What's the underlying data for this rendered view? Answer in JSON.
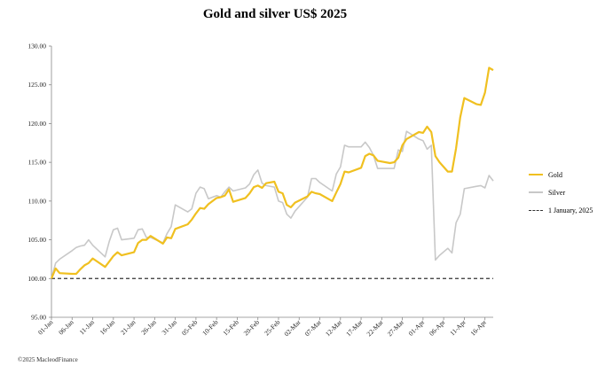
{
  "title": "Gold and silver  US$ 2025",
  "footer": "©2025 MacleodFinance",
  "colors": {
    "gold": "#f0c020",
    "silver": "#c8c8c8",
    "baseline": "#333333",
    "axis": "#888888"
  },
  "chart_data": {
    "type": "line",
    "title": "Gold and silver  US$ 2025",
    "ylim": [
      95,
      130
    ],
    "yticks": [
      "95.00",
      "100.00",
      "105.00",
      "110.00",
      "115.00",
      "120.00",
      "125.00",
      "130.00"
    ],
    "xtick_labels": [
      "01-Jan",
      "06-Jan",
      "11-Jan",
      "16-Jan",
      "21-Jan",
      "26-Jan",
      "31-Jan",
      "05-Feb",
      "10-Feb",
      "15-Feb",
      "20-Feb",
      "25-Feb",
      "02-Mar",
      "07-Mar",
      "12-Mar",
      "17-Mar",
      "22-Mar",
      "27-Mar",
      "01-Apr",
      "06-Apr",
      "11-Apr",
      "16-Apr"
    ],
    "x_start": "01-Jan",
    "x_end": "18-Apr",
    "legend_position": "right",
    "series": [
      {
        "name": "Gold",
        "color": "#f0c020",
        "points": [
          [
            "01-Jan",
            100.0
          ],
          [
            "02-Jan",
            101.3
          ],
          [
            "03-Jan",
            100.7
          ],
          [
            "06-Jan",
            100.6
          ],
          [
            "07-Jan",
            100.6
          ],
          [
            "08-Jan",
            101.2
          ],
          [
            "09-Jan",
            101.7
          ],
          [
            "10-Jan",
            102.0
          ],
          [
            "11-Jan",
            102.6
          ],
          [
            "14-Jan",
            101.5
          ],
          [
            "15-Jan",
            102.2
          ],
          [
            "16-Jan",
            102.9
          ],
          [
            "17-Jan",
            103.4
          ],
          [
            "18-Jan",
            103.0
          ],
          [
            "21-Jan",
            103.4
          ],
          [
            "22-Jan",
            104.6
          ],
          [
            "23-Jan",
            105.0
          ],
          [
            "24-Jan",
            105.0
          ],
          [
            "25-Jan",
            105.5
          ],
          [
            "28-Jan",
            104.5
          ],
          [
            "29-Jan",
            105.3
          ],
          [
            "30-Jan",
            105.2
          ],
          [
            "31-Jan",
            106.4
          ],
          [
            "03-Feb",
            107.0
          ],
          [
            "04-Feb",
            107.6
          ],
          [
            "05-Feb",
            108.4
          ],
          [
            "06-Feb",
            109.1
          ],
          [
            "07-Feb",
            109.0
          ],
          [
            "08-Feb",
            109.6
          ],
          [
            "10-Feb",
            110.4
          ],
          [
            "11-Feb",
            110.5
          ],
          [
            "12-Feb",
            110.7
          ],
          [
            "13-Feb",
            111.5
          ],
          [
            "14-Feb",
            109.9
          ],
          [
            "17-Feb",
            110.4
          ],
          [
            "18-Feb",
            111.0
          ],
          [
            "19-Feb",
            111.8
          ],
          [
            "20-Feb",
            112.0
          ],
          [
            "21-Feb",
            111.7
          ],
          [
            "22-Feb",
            112.3
          ],
          [
            "24-Feb",
            112.5
          ],
          [
            "25-Feb",
            111.2
          ],
          [
            "26-Feb",
            111.0
          ],
          [
            "27-Feb",
            109.5
          ],
          [
            "28-Feb",
            109.2
          ],
          [
            "01-Mar",
            109.8
          ],
          [
            "04-Mar",
            110.6
          ],
          [
            "05-Mar",
            111.2
          ],
          [
            "06-Mar",
            111.0
          ],
          [
            "07-Mar",
            110.9
          ],
          [
            "10-Mar",
            110.0
          ],
          [
            "11-Mar",
            111.1
          ],
          [
            "12-Mar",
            112.2
          ],
          [
            "13-Mar",
            113.8
          ],
          [
            "14-Mar",
            113.7
          ],
          [
            "17-Mar",
            114.3
          ],
          [
            "18-Mar",
            115.8
          ],
          [
            "19-Mar",
            116.1
          ],
          [
            "20-Mar",
            115.9
          ],
          [
            "21-Mar",
            115.2
          ],
          [
            "24-Mar",
            114.9
          ],
          [
            "25-Mar",
            115.0
          ],
          [
            "26-Mar",
            115.6
          ],
          [
            "27-Mar",
            117.2
          ],
          [
            "28-Mar",
            118.0
          ],
          [
            "31-Mar",
            118.9
          ],
          [
            "01-Apr",
            118.8
          ],
          [
            "02-Apr",
            119.6
          ],
          [
            "03-Apr",
            118.9
          ],
          [
            "04-Apr",
            115.8
          ],
          [
            "05-Apr",
            115.0
          ],
          [
            "07-Apr",
            113.8
          ],
          [
            "08-Apr",
            113.8
          ],
          [
            "09-Apr",
            116.8
          ],
          [
            "10-Apr",
            120.8
          ],
          [
            "11-Apr",
            123.3
          ],
          [
            "14-Apr",
            122.5
          ],
          [
            "15-Apr",
            122.4
          ],
          [
            "16-Apr",
            124.0
          ],
          [
            "17-Apr",
            127.2
          ],
          [
            "18-Apr",
            126.9
          ]
        ]
      },
      {
        "name": "Silver",
        "color": "#c8c8c8",
        "points": [
          [
            "01-Jan",
            100.0
          ],
          [
            "02-Jan",
            102.0
          ],
          [
            "03-Jan",
            102.5
          ],
          [
            "06-Jan",
            103.6
          ],
          [
            "07-Jan",
            104.0
          ],
          [
            "08-Jan",
            104.2
          ],
          [
            "09-Jan",
            104.3
          ],
          [
            "10-Jan",
            105.0
          ],
          [
            "11-Jan",
            104.3
          ],
          [
            "14-Jan",
            102.8
          ],
          [
            "15-Jan",
            104.8
          ],
          [
            "16-Jan",
            106.3
          ],
          [
            "17-Jan",
            106.5
          ],
          [
            "18-Jan",
            105.0
          ],
          [
            "21-Jan",
            105.2
          ],
          [
            "22-Jan",
            106.3
          ],
          [
            "23-Jan",
            106.4
          ],
          [
            "24-Jan",
            105.3
          ],
          [
            "25-Jan",
            105.3
          ],
          [
            "28-Jan",
            104.6
          ],
          [
            "29-Jan",
            105.8
          ],
          [
            "30-Jan",
            106.7
          ],
          [
            "31-Jan",
            109.5
          ],
          [
            "03-Feb",
            108.6
          ],
          [
            "04-Feb",
            109.0
          ],
          [
            "05-Feb",
            111.0
          ],
          [
            "06-Feb",
            111.8
          ],
          [
            "07-Feb",
            111.6
          ],
          [
            "08-Feb",
            110.3
          ],
          [
            "10-Feb",
            110.7
          ],
          [
            "11-Feb",
            110.5
          ],
          [
            "12-Feb",
            111.2
          ],
          [
            "13-Feb",
            111.8
          ],
          [
            "14-Feb",
            111.3
          ],
          [
            "17-Feb",
            111.7
          ],
          [
            "18-Feb",
            112.2
          ],
          [
            "19-Feb",
            113.4
          ],
          [
            "20-Feb",
            114.0
          ],
          [
            "21-Feb",
            112.3
          ],
          [
            "22-Feb",
            112.0
          ],
          [
            "24-Feb",
            111.8
          ],
          [
            "25-Feb",
            110.0
          ],
          [
            "26-Feb",
            109.8
          ],
          [
            "27-Feb",
            108.3
          ],
          [
            "28-Feb",
            107.8
          ],
          [
            "01-Mar",
            108.7
          ],
          [
            "04-Mar",
            110.5
          ],
          [
            "05-Mar",
            112.9
          ],
          [
            "06-Mar",
            112.9
          ],
          [
            "07-Mar",
            112.4
          ],
          [
            "10-Mar",
            111.3
          ],
          [
            "11-Mar",
            113.5
          ],
          [
            "12-Mar",
            114.4
          ],
          [
            "13-Mar",
            117.2
          ],
          [
            "14-Mar",
            117.0
          ],
          [
            "17-Mar",
            117.0
          ],
          [
            "18-Mar",
            117.6
          ],
          [
            "19-Mar",
            116.9
          ],
          [
            "20-Mar",
            115.9
          ],
          [
            "21-Mar",
            114.2
          ],
          [
            "24-Mar",
            114.2
          ],
          [
            "25-Mar",
            114.2
          ],
          [
            "26-Mar",
            116.6
          ],
          [
            "27-Mar",
            116.4
          ],
          [
            "28-Mar",
            119.0
          ],
          [
            "31-Mar",
            118.0
          ],
          [
            "01-Apr",
            117.8
          ],
          [
            "02-Apr",
            116.7
          ],
          [
            "03-Apr",
            117.2
          ],
          [
            "04-Apr",
            102.4
          ],
          [
            "05-Apr",
            103.0
          ],
          [
            "07-Apr",
            103.9
          ],
          [
            "08-Apr",
            103.3
          ],
          [
            "09-Apr",
            107.2
          ],
          [
            "10-Apr",
            108.3
          ],
          [
            "11-Apr",
            111.6
          ],
          [
            "14-Apr",
            111.9
          ],
          [
            "15-Apr",
            112.0
          ],
          [
            "16-Apr",
            111.7
          ],
          [
            "17-Apr",
            113.3
          ],
          [
            "18-Apr",
            112.6
          ]
        ]
      },
      {
        "name": "1 January, 2025",
        "color": "#333333",
        "dashed": true,
        "constant": 100.0
      }
    ]
  }
}
